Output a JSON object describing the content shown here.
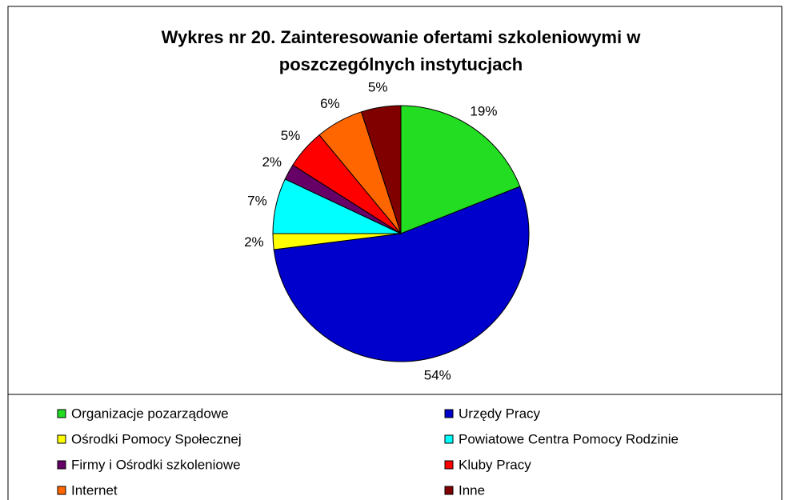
{
  "chart_data": {
    "type": "pie",
    "title": "Wykres nr 20. Zainteresowanie ofertami szkoleniowymi w poszczególnych instytucjach",
    "categories": [
      "Organizacje pozarządowe",
      "Urzędy Pracy",
      "Ośrodki Pomocy Społecznej",
      "Powiatowe Centra Pomocy Rodzinie",
      "Firmy i Ośrodki szkoleniowe",
      "Kluby Pracy",
      "Internet",
      "Inne"
    ],
    "values": [
      19,
      54,
      2,
      7,
      2,
      5,
      6,
      5
    ],
    "value_labels": [
      "19%",
      "54%",
      "2%",
      "7%",
      "2%",
      "5%",
      "6%",
      "5%"
    ],
    "colors": [
      "#22dd22",
      "#0000cc",
      "#ffff00",
      "#00ffff",
      "#660066",
      "#ff0000",
      "#ff6600",
      "#800000"
    ]
  }
}
